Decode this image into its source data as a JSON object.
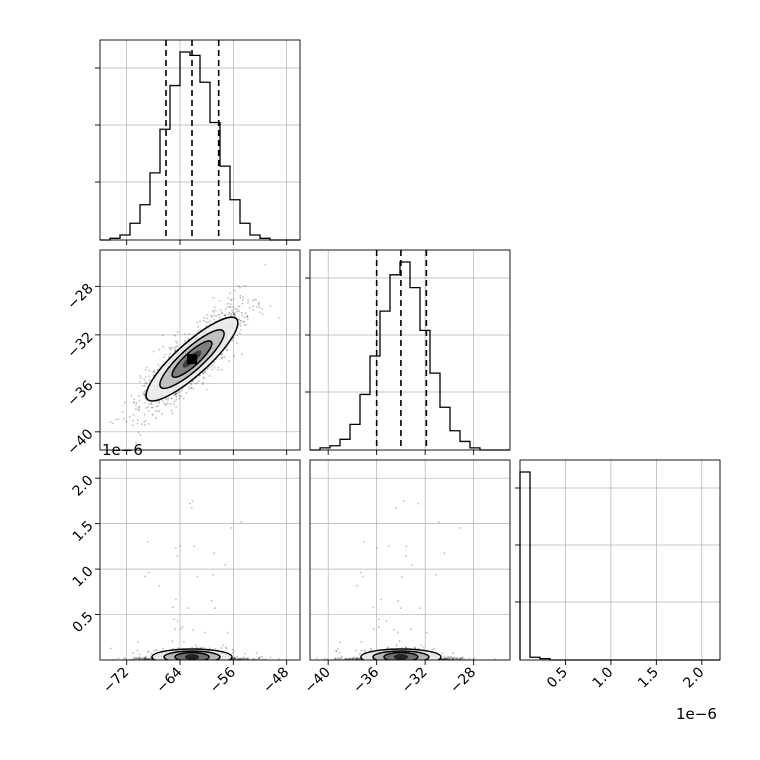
{
  "chart_data": {
    "type": "corner",
    "parameters": [
      {
        "ticks": [
          -72,
          -64,
          -56,
          -48
        ],
        "tick_labels": [
          "−72",
          "−64",
          "−56",
          "−48"
        ],
        "range": [
          -76,
          -46
        ],
        "quantiles": [
          -66.1,
          -62.2,
          -58.2
        ],
        "hist_bins": [
          -76.0,
          -74.5,
          -73.0,
          -71.5,
          -70.0,
          -68.5,
          -67.0,
          -65.5,
          -64.0,
          -62.5,
          -61.0,
          -59.5,
          -58.0,
          -56.5,
          -55.0,
          -53.5,
          -52.0,
          -50.5,
          -49.0,
          -47.5,
          -46.0
        ],
        "hist_counts": [
          0,
          1,
          3,
          10,
          21,
          40,
          66,
          92,
          112,
          110,
          94,
          70,
          44,
          24,
          10,
          3,
          1,
          0,
          0,
          0
        ]
      },
      {
        "ticks": [
          -40,
          -36,
          -32,
          -28
        ],
        "tick_labels": [
          "−40",
          "−36",
          "−32",
          "−28"
        ],
        "range": [
          -41.5,
          -25.0
        ],
        "quantiles": [
          -36.0,
          -34.0,
          -31.9
        ],
        "hist_bins": [
          -41.5,
          -40.675,
          -39.85,
          -39.025,
          -38.2,
          -37.375,
          -36.55,
          -35.725,
          -34.9,
          -34.075,
          -33.25,
          -32.425,
          -31.6,
          -30.775,
          -29.95,
          -29.125,
          -28.3,
          -27.475,
          -26.65,
          -25.825,
          -25.0
        ],
        "hist_counts": [
          0,
          1,
          2,
          5,
          12,
          26,
          44,
          65,
          82,
          88,
          76,
          56,
          36,
          20,
          9,
          4,
          1,
          0,
          0,
          0
        ]
      },
      {
        "ticks": [
          0.5,
          1.0,
          1.5,
          2.0
        ],
        "tick_labels": [
          "0.5",
          "1.0",
          "1.5",
          "2.0"
        ],
        "range": [
          0.0,
          2.2
        ],
        "offset_text": "1e−6",
        "hist_bins": [
          0.0,
          0.11,
          0.22,
          0.33,
          0.44,
          0.55,
          0.66,
          0.77,
          0.88,
          0.99,
          1.1,
          1.21,
          1.32,
          1.43,
          1.54,
          1.65,
          1.76,
          1.87,
          1.98,
          2.09,
          2.2
        ],
        "hist_counts": [
          135,
          2,
          1,
          0,
          0,
          0,
          0,
          0,
          0,
          0,
          0,
          0,
          0,
          0,
          0,
          0,
          0,
          0,
          0,
          0
        ]
      }
    ],
    "correlation_01": 0.85,
    "scale_offsets": {
      "y_row3": "1e−6",
      "x_col3": "1e−6"
    },
    "grid": true,
    "axis_labels_shown": false,
    "colors": {
      "line": "#000000",
      "points": "#555555",
      "grid": "#b0b0b0"
    }
  }
}
